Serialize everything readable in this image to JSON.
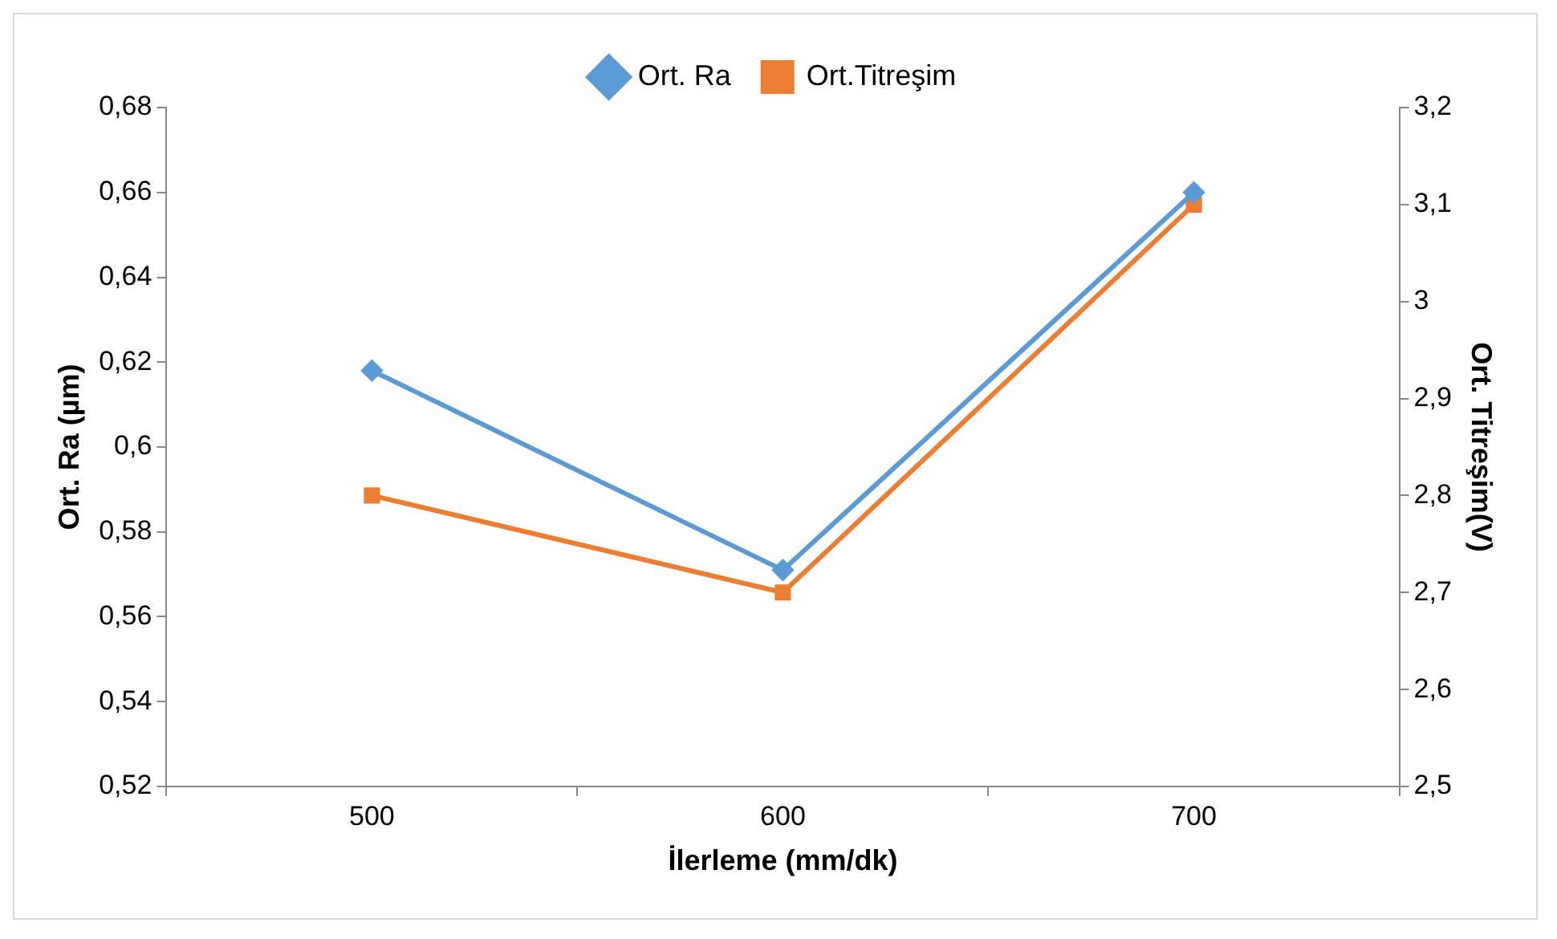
{
  "chart_data": {
    "type": "line",
    "categories": [
      "500",
      "600",
      "700"
    ],
    "xlabel": "İlerleme (mm/dk)",
    "ylabel": "Ort. Ra (µm)",
    "y2label": "Ort. Titreşim(V)",
    "series": [
      {
        "name": "Ort. Ra",
        "color": "#5b9bd5",
        "values": [
          0.618,
          0.571,
          0.66
        ],
        "marker": "diamond"
      },
      {
        "name": "Ort.Titreşim",
        "color": "#ed7d31",
        "values": [
          2.8,
          2.7,
          3.1
        ],
        "axis": "y2",
        "marker": "square"
      }
    ],
    "ylim": [
      0.52,
      0.68
    ],
    "yticks": [
      {
        "value": 0.52,
        "label": "0,52"
      },
      {
        "value": 0.54,
        "label": "0,54"
      },
      {
        "value": 0.56,
        "label": "0,56"
      },
      {
        "value": 0.58,
        "label": "0,58"
      },
      {
        "value": 0.6,
        "label": "0,6"
      },
      {
        "value": 0.62,
        "label": "0,62"
      },
      {
        "value": 0.64,
        "label": "0,64"
      },
      {
        "value": 0.66,
        "label": "0,66"
      },
      {
        "value": 0.68,
        "label": "0,68"
      }
    ],
    "y2lim": [
      2.5,
      3.2
    ],
    "y2ticks": [
      {
        "value": 2.5,
        "label": "2,5"
      },
      {
        "value": 2.6,
        "label": "2,6"
      },
      {
        "value": 2.7,
        "label": "2,7"
      },
      {
        "value": 2.8,
        "label": "2,8"
      },
      {
        "value": 2.9,
        "label": "2,9"
      },
      {
        "value": 3,
        "label": "3"
      },
      {
        "value": 3.1,
        "label": "3,1"
      },
      {
        "value": 3.2,
        "label": "3,2"
      }
    ],
    "grid": false,
    "legend": "top",
    "line_style": "solid"
  }
}
